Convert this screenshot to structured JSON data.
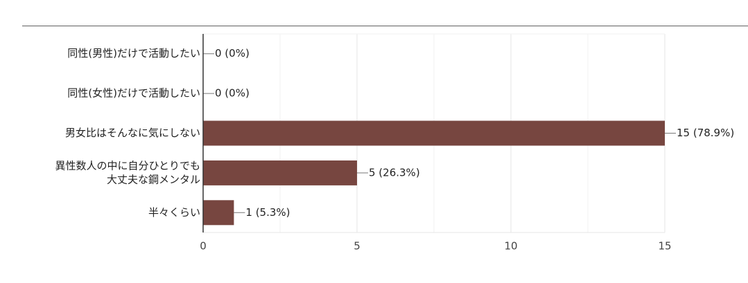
{
  "chart_data": {
    "type": "bar",
    "orientation": "horizontal",
    "categories": [
      [
        "同性(男性)だけで活動したい"
      ],
      [
        "同性(女性)だけで活動したい"
      ],
      [
        "男女比はそんなに気にしない"
      ],
      [
        "異性数人の中に自分ひとりでも",
        "大丈夫な鋼メンタル"
      ],
      [
        "半々くらい"
      ]
    ],
    "values": [
      0,
      0,
      15,
      5,
      1
    ],
    "value_labels": [
      "0 (0%)",
      "0 (0%)",
      "15 (78.9%)",
      "5 (26.3%)",
      "1 (5.3%)"
    ],
    "x_ticks": [
      0,
      5,
      10,
      15
    ],
    "xlim": [
      0,
      15
    ],
    "grid": true,
    "title": "",
    "xlabel": "",
    "ylabel": "",
    "bar_color": "#774640"
  }
}
